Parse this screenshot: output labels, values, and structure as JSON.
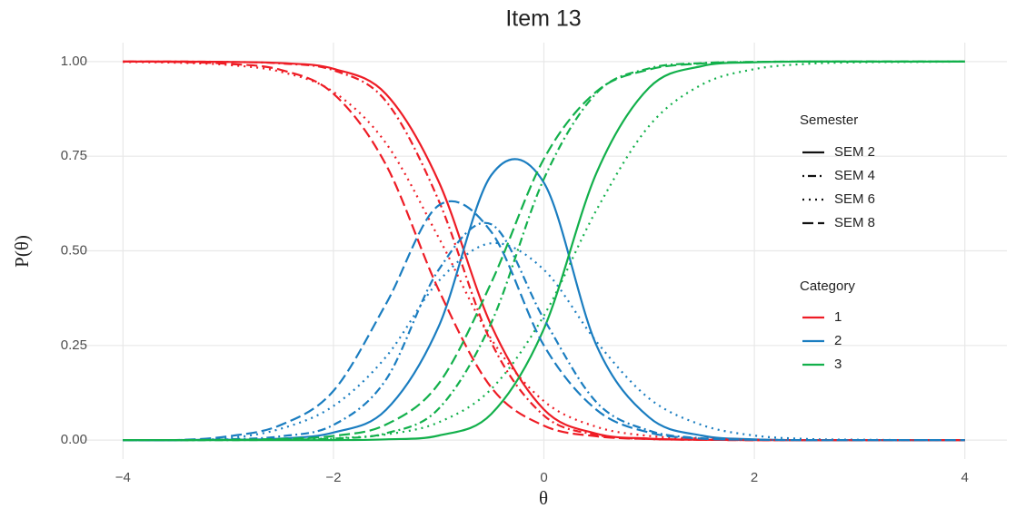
{
  "chart_data": {
    "type": "line",
    "title": "Item 13",
    "x_label": "θ",
    "y_label": "P(θ)",
    "x": [
      -4,
      -3.5,
      -3,
      -2.5,
      -2,
      -1.5,
      -1,
      -0.5,
      0,
      0.5,
      1,
      1.5,
      2,
      2.5,
      3,
      3.5,
      4
    ],
    "xlim": [
      -4.4,
      4.4
    ],
    "ylim": [
      -0.05,
      1.05
    ],
    "xticks": [
      {
        "value": -4,
        "label": "−4"
      },
      {
        "value": -2,
        "label": "−2"
      },
      0,
      2,
      4
    ],
    "yticks": [
      {
        "value": 0,
        "label": "0.00"
      },
      {
        "value": 0.25,
        "label": "0.25"
      },
      {
        "value": 0.5,
        "label": "0.50"
      },
      {
        "value": 0.75,
        "label": "0.75"
      },
      {
        "value": 1,
        "label": "1.00"
      }
    ],
    "grid": true,
    "line_legend_title": "Semester",
    "color_legend_title": "Category",
    "groups": [
      {
        "name": "1",
        "color": "#ee1c25"
      },
      {
        "name": "2",
        "color": "#1a7dc0"
      },
      {
        "name": "3",
        "color": "#12b04b"
      }
    ],
    "series": [
      {
        "name": "SEM 2",
        "dash": "none",
        "values": [
          [
            1,
            1,
            0.999,
            0.996,
            0.981,
            0.914,
            0.683,
            0.303,
            0.081,
            0.017,
            0.004,
            0.001,
            0,
            0,
            0,
            0,
            0
          ],
          [
            0,
            0,
            0.001,
            0.004,
            0.02,
            0.08,
            0.3,
            0.7,
            0.68,
            0.25,
            0.06,
            0.012,
            0.002,
            0,
            0,
            0,
            0
          ],
          [
            0,
            0,
            0,
            0,
            0,
            0.002,
            0.012,
            0.069,
            0.294,
            0.706,
            0.931,
            0.988,
            0.998,
            1,
            1,
            1,
            1
          ]
        ]
      },
      {
        "name": "SEM 4",
        "dash": "2 4 9 4",
        "values": [
          [
            1,
            1,
            0.999,
            0.995,
            0.977,
            0.895,
            0.633,
            0.258,
            0.065,
            0.014,
            0.003,
            0.001,
            0,
            0,
            0,
            0,
            0
          ],
          [
            0,
            0,
            0.002,
            0.01,
            0.04,
            0.16,
            0.45,
            0.57,
            0.32,
            0.1,
            0.025,
            0.005,
            0.001,
            0,
            0,
            0,
            0
          ],
          [
            0,
            0,
            0,
            0.001,
            0.004,
            0.018,
            0.083,
            0.31,
            0.69,
            0.917,
            0.982,
            0.996,
            0.999,
            1,
            1,
            1,
            1
          ]
        ]
      },
      {
        "name": "SEM 6",
        "dash": "2 5",
        "values": [
          [
            0.999,
            0.997,
            0.991,
            0.973,
            0.92,
            0.784,
            0.535,
            0.267,
            0.103,
            0.035,
            0.011,
            0.004,
            0.001,
            0,
            0,
            0,
            0
          ],
          [
            0,
            0,
            0.005,
            0.03,
            0.09,
            0.22,
            0.42,
            0.52,
            0.45,
            0.26,
            0.11,
            0.04,
            0.012,
            0.003,
            0.001,
            0,
            0
          ],
          [
            0,
            0,
            0.001,
            0.002,
            0.005,
            0.015,
            0.047,
            0.135,
            0.329,
            0.608,
            0.83,
            0.939,
            0.98,
            0.994,
            0.998,
            0.999,
            1
          ]
        ]
      },
      {
        "name": "SEM 8",
        "dash": "12 5",
        "values": [
          [
            1,
            0.999,
            0.994,
            0.978,
            0.915,
            0.727,
            0.397,
            0.139,
            0.038,
            0.01,
            0.003,
            0.001,
            0,
            0,
            0,
            0,
            0
          ],
          [
            0,
            0,
            0.01,
            0.04,
            0.13,
            0.36,
            0.62,
            0.55,
            0.25,
            0.08,
            0.02,
            0.004,
            0.001,
            0,
            0,
            0,
            0
          ],
          [
            0,
            0,
            0.001,
            0.003,
            0.011,
            0.041,
            0.149,
            0.416,
            0.743,
            0.921,
            0.979,
            0.995,
            0.999,
            1,
            1,
            1,
            1
          ]
        ]
      }
    ]
  }
}
